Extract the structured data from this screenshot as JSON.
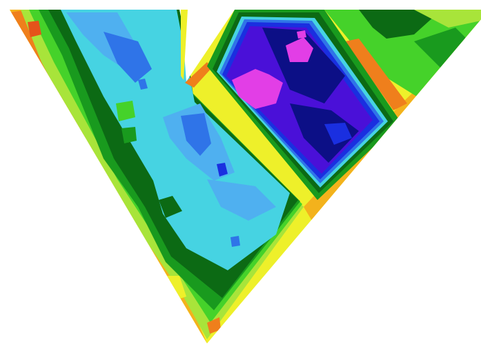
{
  "image": {
    "kind": "false-color contour pseudosection",
    "background": "#ffffff"
  },
  "palette": {
    "magenta": "#e23ee6",
    "violet": "#4a10d8",
    "navy": "#0c0f86",
    "blue": "#1a2fe0",
    "mid_blue": "#2f74e8",
    "sky": "#4fb0f0",
    "cyan": "#46d3e2",
    "dark_green": "#0c6a14",
    "green": "#199a1e",
    "light_green": "#45d22a",
    "lime": "#a8e43a",
    "yellow": "#eef02a",
    "amber": "#f3b21c",
    "orange": "#ef7f1c",
    "red_orange": "#e5531a"
  },
  "sections": [
    {
      "id": "left-section",
      "dominant_color": "cyan"
    },
    {
      "id": "right-section",
      "dominant_color": "violet"
    }
  ]
}
